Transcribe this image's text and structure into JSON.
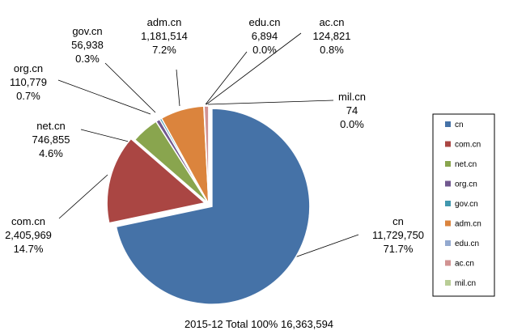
{
  "chart_data": {
    "type": "pie",
    "footer": "2015-12 Total 100%  16,363,594",
    "total": 16363594,
    "slices": [
      {
        "name": "cn",
        "value": 11729750,
        "value_label": "11,729,750",
        "pct": "71.7%",
        "color": "#4572A7"
      },
      {
        "name": "com.cn",
        "value": 2405969,
        "value_label": "2,405,969",
        "pct": "14.7%",
        "color": "#AA4643"
      },
      {
        "name": "net.cn",
        "value": 746855,
        "value_label": "746,855",
        "pct": "4.6%",
        "color": "#89A54E"
      },
      {
        "name": "org.cn",
        "value": 110779,
        "value_label": "110,779",
        "pct": "0.7%",
        "color": "#71588F"
      },
      {
        "name": "gov.cn",
        "value": 56938,
        "value_label": "56,938",
        "pct": "0.3%",
        "color": "#4198AF"
      },
      {
        "name": "adm.cn",
        "value": 1181514,
        "value_label": "1,181,514",
        "pct": "7.2%",
        "color": "#DB843D"
      },
      {
        "name": "edu.cn",
        "value": 6894,
        "value_label": "6,894",
        "pct": "0.0%",
        "color": "#93A9CF"
      },
      {
        "name": "ac.cn",
        "value": 124821,
        "value_label": "124,821",
        "pct": "0.8%",
        "color": "#D19392"
      },
      {
        "name": "mil.cn",
        "value": 74,
        "value_label": "74",
        "pct": "0.0%",
        "color": "#B9CD96"
      }
    ],
    "legend": [
      "cn",
      "com.cn",
      "net.cn",
      "org.cn",
      "gov.cn",
      "adm.cn",
      "edu.cn",
      "ac.cn",
      "mil.cn"
    ],
    "legend_position": "right"
  }
}
